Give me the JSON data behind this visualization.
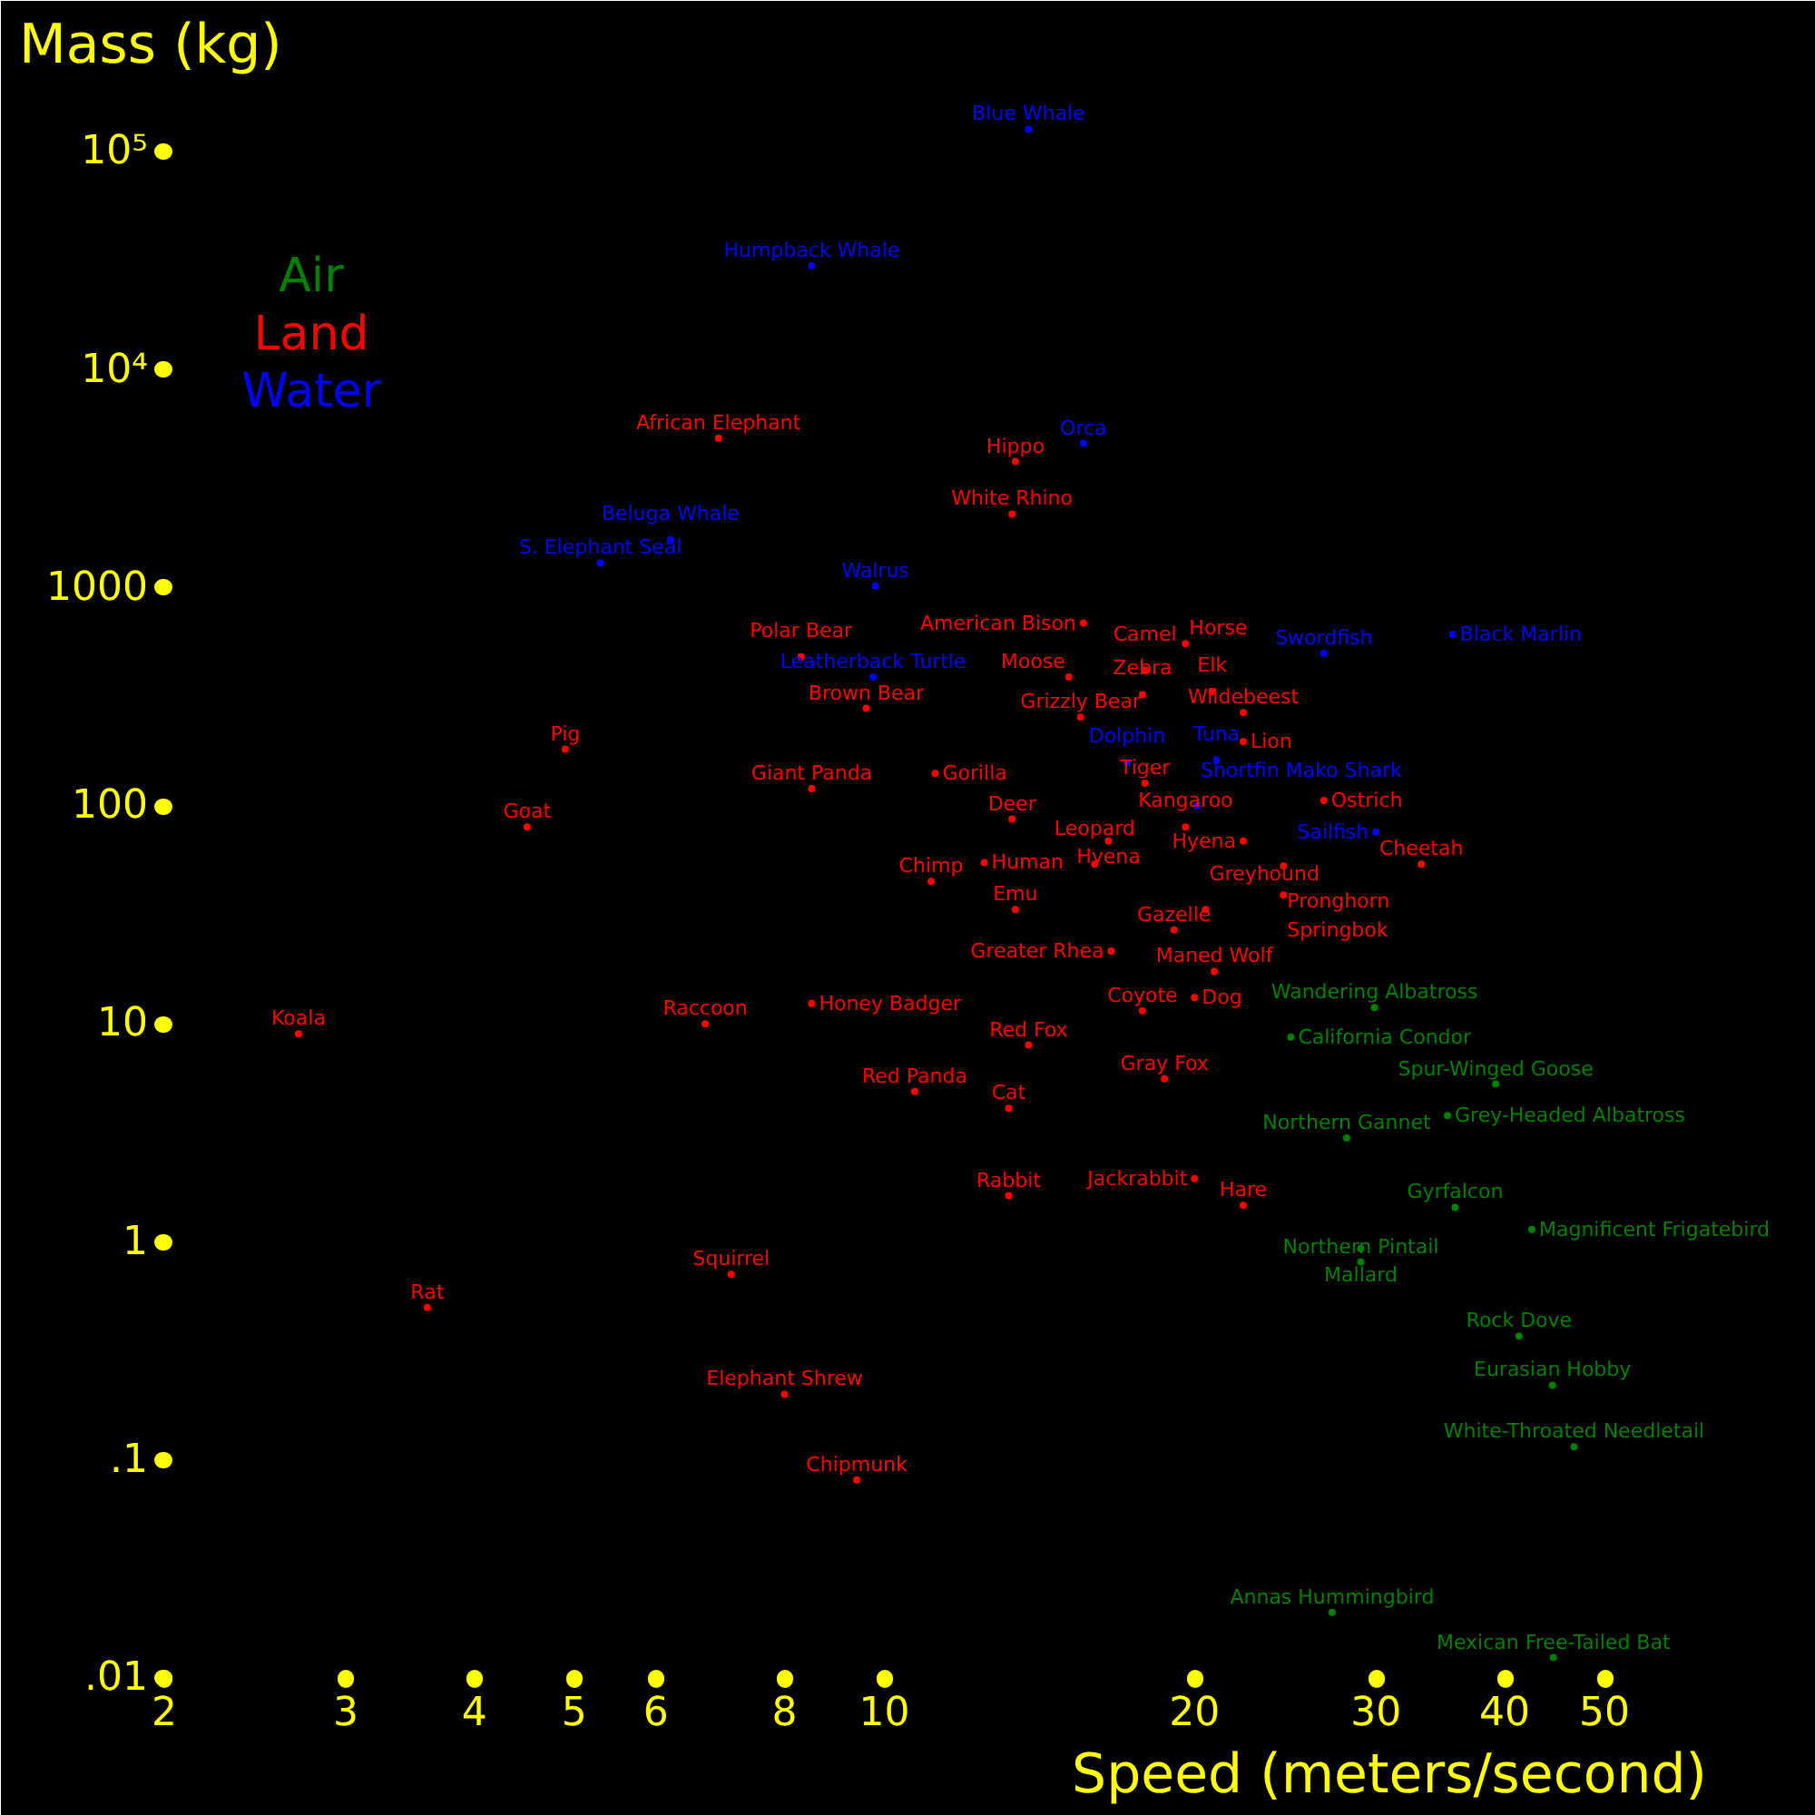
{
  "chart_data": {
    "type": "scatter",
    "xlabel": "Speed (meters/second)",
    "ylabel": "Mass (kg)",
    "log": "xy",
    "grid": false,
    "marker": "circle",
    "xlim": [
      2,
      77
    ],
    "ylim": [
      0.01,
      200000
    ],
    "xticks": [
      2,
      3,
      4,
      5,
      6,
      8,
      10,
      20,
      30,
      40,
      50
    ],
    "yticks": [
      {
        "value": 0.01,
        "label": ".01"
      },
      {
        "value": 0.1,
        "label": ".1"
      },
      1,
      10,
      100,
      1000,
      {
        "value": 10000,
        "label": "10⁴"
      },
      {
        "value": 100000,
        "label": "10⁵"
      }
    ],
    "series": [
      {
        "name": "Air",
        "color": "#008000",
        "x": [
          29.9,
          24.8,
          39.2,
          35.2,
          28.1,
          35.8,
          42.5,
          29.0,
          29.0,
          41.3,
          44.5,
          46.7,
          27.2,
          44.6
        ],
        "values": [
          11.9,
          8.7,
          5.3,
          3.8,
          3.0,
          1.44,
          1.14,
          0.93,
          0.81,
          0.37,
          0.22,
          0.115,
          0.02,
          0.0124
        ],
        "value_labels": [
          "Wandering Albatross",
          "California Condor",
          "Spur-Winged Goose",
          "Grey-Headed Albatross",
          "Northern Gannet",
          "Gyrfalcon",
          "Magnificent Frigatebird",
          "Mallard",
          "Northern Pintail",
          "Rock Dove",
          "Eurasian Hobby",
          "White-Throated Needletail",
          "Annas Hummingbird",
          "Mexican Free-Tailed Bat"
        ]
      },
      {
        "name": "Land",
        "color": "#ff0000",
        "x": [
          6.9,
          13.4,
          13.3,
          15.6,
          19.6,
          8.3,
          17.9,
          15.1,
          17.8,
          20.8,
          9.6,
          15.5,
          22.3,
          22.3,
          4.9,
          11.2,
          17.9,
          8.5,
          26.7,
          13.3,
          19.6,
          4.5,
          16.5,
          22.3,
          12.5,
          16.0,
          24.4,
          33.2,
          11.1,
          24.4,
          13.4,
          20.5,
          19.1,
          16.6,
          20.9,
          20.0,
          8.5,
          17.8,
          6.7,
          2.7,
          13.8,
          18.7,
          10.7,
          13.2,
          20.0,
          13.2,
          22.3,
          7.1,
          3.6,
          8.0,
          9.4
        ],
        "values": [
          4850,
          3800,
          2180,
          690,
          555,
          483,
          420,
          390,
          324,
          335,
          280,
          255,
          268,
          197,
          182,
          141,
          127,
          120,
          106,
          87,
          80,
          80,
          69,
          69,
          55,
          54,
          53,
          54,
          45,
          39,
          33.5,
          33.5,
          27,
          21.6,
          17.4,
          13.2,
          12.4,
          11.5,
          10,
          9.0,
          8.0,
          5.6,
          4.9,
          4.1,
          1.95,
          1.63,
          1.47,
          0.71,
          0.5,
          0.2,
          0.081
        ],
        "value_labels": [
          "African Elephant",
          "Hippo",
          "White Rhino",
          "American Bison",
          "Horse",
          "Polar Bear",
          "Camel",
          "Moose",
          "Zebra",
          "Elk",
          "Brown Bear",
          "Grizzly Bear",
          "Wildebeest",
          "Lion",
          "Pig",
          "Gorilla",
          "Tiger",
          "Giant Panda",
          "Ostrich",
          "Deer",
          "Kangaroo",
          "Goat",
          "Hyena",
          "Hyena",
          "Human",
          "Leopard",
          "Pronghorn",
          "Cheetah",
          "Chimp",
          "Springbok",
          "Emu",
          "Greyhound",
          "Gazelle",
          "Greater Rhea",
          "Maned Wolf",
          "Dog",
          "Honey Badger",
          "Coyote",
          "Raccoon",
          "Koala",
          "Red Fox",
          "Gray Fox",
          "Red Panda",
          "Cat",
          "Jackrabbit",
          "Rabbit",
          "Hare",
          "Squirrel",
          "Rat",
          "Elephant Shrew",
          "Chipmunk"
        ]
      },
      {
        "name": "Water",
        "color": "#0000ff",
        "x": [
          13.8,
          8.5,
          15.6,
          6.2,
          5.3,
          9.8,
          35.6,
          26.7,
          9.75,
          17.2,
          21.0,
          20.1,
          30.0
        ],
        "values": [
          127000,
          30000,
          4600,
          1660,
          1300,
          1020,
          612,
          500,
          390,
          158,
          162,
          100,
          76
        ],
        "value_labels": [
          "Blue Whale",
          "Humpback Whale",
          "Orca",
          "Beluga Whale",
          "S. Elephant Seal",
          "Walrus",
          "Black Marlin",
          "Swordfish",
          "Leatherback Turtle",
          "Dolphin",
          "Tuna",
          "Shortfin Mako Shark",
          "Sailfish"
        ]
      }
    ]
  }
}
